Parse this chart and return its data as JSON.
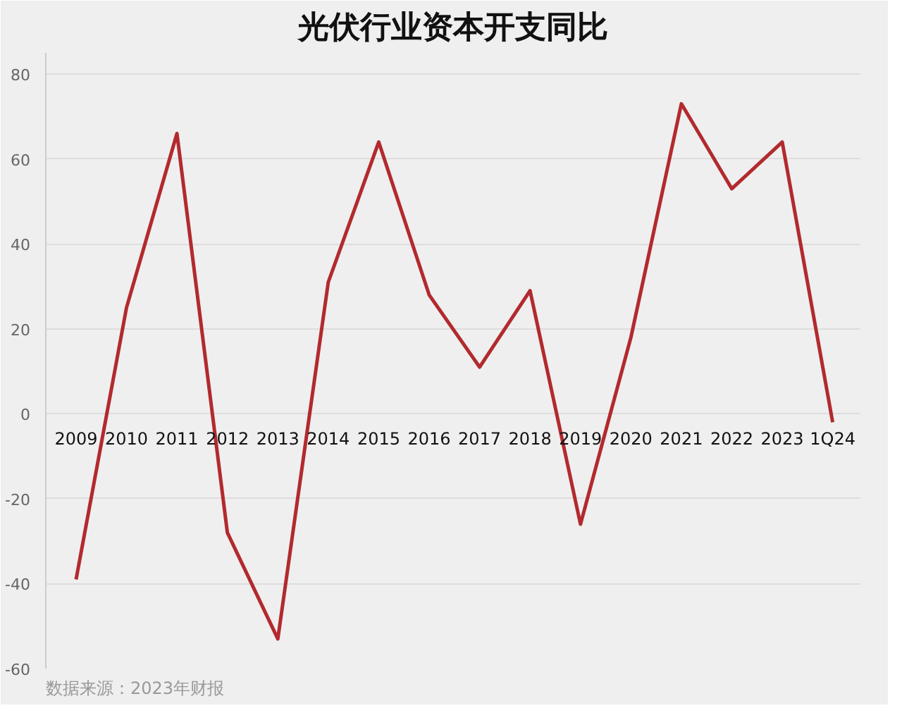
{
  "chart_data": {
    "type": "line",
    "title": "光伏行业资本开支同比",
    "categories": [
      "2009",
      "2010",
      "2011",
      "2012",
      "2013",
      "2014",
      "2015",
      "2016",
      "2017",
      "2018",
      "2019",
      "2020",
      "2021",
      "2022",
      "2023",
      "1Q24"
    ],
    "series": [
      {
        "color": "#b22a2e",
        "values": [
          -39,
          25,
          66,
          -28,
          -53,
          31,
          64,
          28,
          11,
          29,
          -26,
          18,
          73,
          53,
          64,
          -2
        ]
      }
    ],
    "ylim": [
      -60,
      85
    ],
    "yticks": [
      -60,
      -40,
      -20,
      0,
      20,
      40,
      60,
      80
    ],
    "grid": "y",
    "marker": "none",
    "line_style": "solid",
    "annotations": [
      "数据来源：2023年财报"
    ]
  }
}
